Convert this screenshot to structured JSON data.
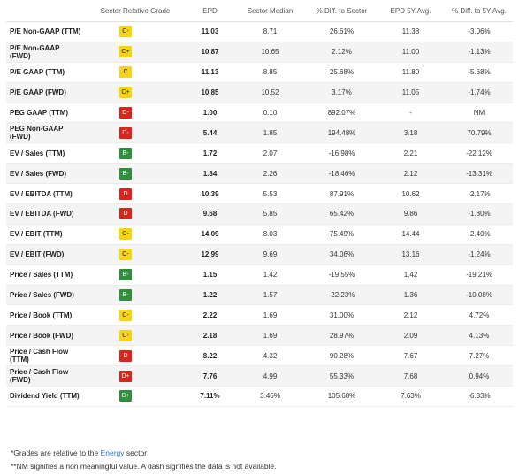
{
  "headers": {
    "metric": "",
    "grade": "Sector Relative Grade",
    "epd": "EPD",
    "median": "Sector Median",
    "diff": "% Diff. to Sector",
    "avg5y": "EPD 5Y Avg.",
    "diff5y": "% Diff. to 5Y Avg."
  },
  "grade_colors": {
    "yellow": "#f5d414",
    "green": "#2f8f3c",
    "red": "#d8261c"
  },
  "rows": [
    {
      "metric": "P/E Non-GAAP (TTM)",
      "grade": "C-",
      "color": "yellow",
      "epd": "11.03",
      "median": "8.71",
      "diff": "26.61%",
      "avg5y": "11.38",
      "diff5y": "-3.06%"
    },
    {
      "metric": "P/E Non-GAAP (FWD)",
      "grade": "C+",
      "color": "yellow",
      "epd": "10.87",
      "median": "10.65",
      "diff": "2.12%",
      "avg5y": "11.00",
      "diff5y": "-1.13%"
    },
    {
      "metric": "P/E GAAP (TTM)",
      "grade": "C",
      "color": "yellow",
      "epd": "11.13",
      "median": "8.85",
      "diff": "25.68%",
      "avg5y": "11.80",
      "diff5y": "-5.68%"
    },
    {
      "metric": "P/E GAAP (FWD)",
      "grade": "C+",
      "color": "yellow",
      "epd": "10.85",
      "median": "10.52",
      "diff": "3.17%",
      "avg5y": "11.05",
      "diff5y": "-1.74%"
    },
    {
      "metric": "PEG GAAP (TTM)",
      "grade": "D-",
      "color": "red",
      "epd": "1.00",
      "median": "0.10",
      "diff": "892.07%",
      "avg5y": "-",
      "diff5y": "NM"
    },
    {
      "metric": "PEG Non-GAAP (FWD)",
      "grade": "D-",
      "color": "red",
      "epd": "5.44",
      "median": "1.85",
      "diff": "194.48%",
      "avg5y": "3.18",
      "diff5y": "70.79%"
    },
    {
      "metric": "EV / Sales (TTM)",
      "grade": "B-",
      "color": "green",
      "epd": "1.72",
      "median": "2.07",
      "diff": "-16.98%",
      "avg5y": "2.21",
      "diff5y": "-22.12%"
    },
    {
      "metric": "EV / Sales (FWD)",
      "grade": "B-",
      "color": "green",
      "epd": "1.84",
      "median": "2.26",
      "diff": "-18.46%",
      "avg5y": "2.12",
      "diff5y": "-13.31%"
    },
    {
      "metric": "EV / EBITDA (TTM)",
      "grade": "D",
      "color": "red",
      "epd": "10.39",
      "median": "5.53",
      "diff": "87.91%",
      "avg5y": "10.62",
      "diff5y": "-2.17%"
    },
    {
      "metric": "EV / EBITDA (FWD)",
      "grade": "D",
      "color": "red",
      "epd": "9.68",
      "median": "5.85",
      "diff": "65.42%",
      "avg5y": "9.86",
      "diff5y": "-1.80%"
    },
    {
      "metric": "EV / EBIT (TTM)",
      "grade": "C-",
      "color": "yellow",
      "epd": "14.09",
      "median": "8.03",
      "diff": "75.49%",
      "avg5y": "14.44",
      "diff5y": "-2.40%"
    },
    {
      "metric": "EV / EBIT (FWD)",
      "grade": "C-",
      "color": "yellow",
      "epd": "12.99",
      "median": "9.69",
      "diff": "34.06%",
      "avg5y": "13.16",
      "diff5y": "-1.24%"
    },
    {
      "metric": "Price / Sales (TTM)",
      "grade": "B-",
      "color": "green",
      "epd": "1.15",
      "median": "1.42",
      "diff": "-19.55%",
      "avg5y": "1.42",
      "diff5y": "-19.21%"
    },
    {
      "metric": "Price / Sales (FWD)",
      "grade": "B-",
      "color": "green",
      "epd": "1.22",
      "median": "1.57",
      "diff": "-22.23%",
      "avg5y": "1.36",
      "diff5y": "-10.08%"
    },
    {
      "metric": "Price / Book (TTM)",
      "grade": "C-",
      "color": "yellow",
      "epd": "2.22",
      "median": "1.69",
      "diff": "31.00%",
      "avg5y": "2.12",
      "diff5y": "4.72%"
    },
    {
      "metric": "Price / Book (FWD)",
      "grade": "C-",
      "color": "yellow",
      "epd": "2.18",
      "median": "1.69",
      "diff": "28.97%",
      "avg5y": "2.09",
      "diff5y": "4.13%"
    },
    {
      "metric": "Price / Cash Flow (TTM)",
      "grade": "D",
      "color": "red",
      "epd": "8.22",
      "median": "4.32",
      "diff": "90.28%",
      "avg5y": "7.67",
      "diff5y": "7.27%"
    },
    {
      "metric": "Price / Cash Flow (FWD)",
      "grade": "D+",
      "color": "red",
      "epd": "7.76",
      "median": "4.99",
      "diff": "55.33%",
      "avg5y": "7.68",
      "diff5y": "0.94%"
    },
    {
      "metric": "Dividend Yield (TTM)",
      "grade": "B+",
      "color": "green",
      "epd": "7.11%",
      "median": "3.46%",
      "diff": "105.68%",
      "avg5y": "7.63%",
      "diff5y": "-6.83%"
    }
  ],
  "footnotes": {
    "line1_prefix": "*Grades are relative to the ",
    "line1_sector": "Energy",
    "line1_suffix": " sector",
    "line2": "**NM signifies a non meaningful value. A dash signifies the data is not available."
  }
}
